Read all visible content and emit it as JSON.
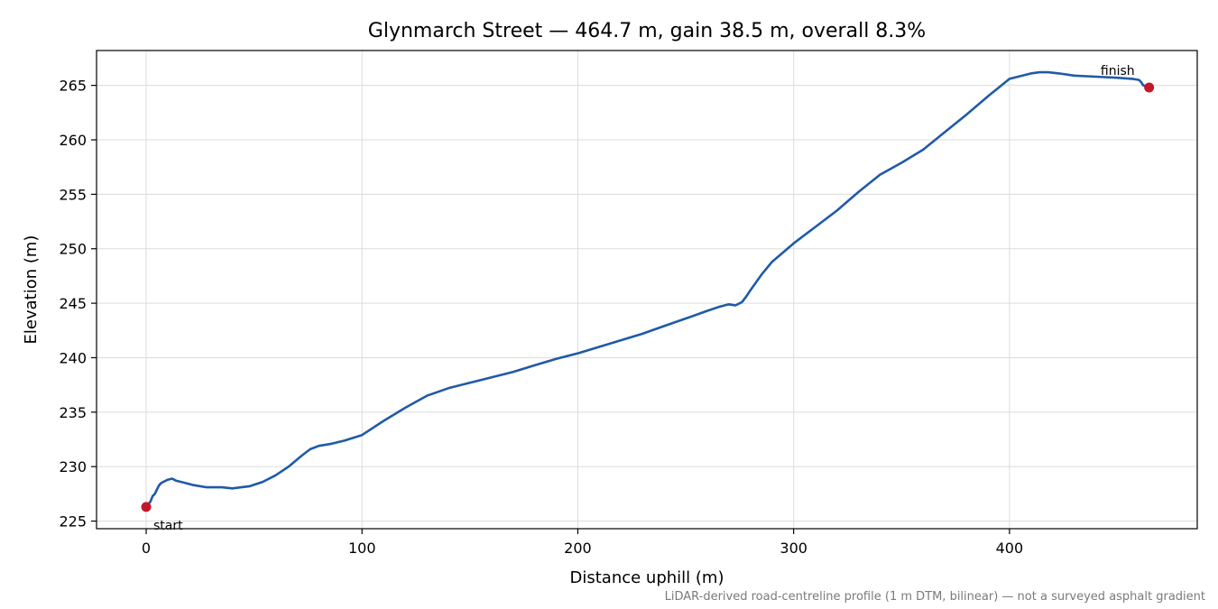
{
  "chart_data": {
    "type": "line",
    "title": "Glynmarch Street — 464.7 m, gain 38.5 m, overall 8.3%",
    "xlabel": "Distance uphill (m)",
    "ylabel": "Elevation (m)",
    "footnote": "LiDAR-derived road-centreline profile (1 m DTM, bilinear) — not a surveyed asphalt gradient",
    "xlim": [
      -23,
      487
    ],
    "ylim": [
      224.3,
      268.2
    ],
    "xticks": [
      0,
      100,
      200,
      300,
      400
    ],
    "yticks": [
      225,
      230,
      235,
      240,
      245,
      250,
      255,
      260,
      265
    ],
    "grid": true,
    "colors": {
      "line": "#1f5aa8",
      "endpoints": "#c0192a"
    },
    "series": [
      {
        "x": [
          0,
          2,
          3,
          4,
          5,
          6,
          7,
          8,
          10,
          12,
          14,
          18,
          22,
          28,
          35,
          40,
          44,
          48,
          54,
          60,
          66,
          72,
          76,
          80,
          86,
          92,
          100,
          110,
          120,
          130,
          140,
          150,
          160,
          170,
          180,
          190,
          200,
          210,
          220,
          230,
          240,
          250,
          260,
          266,
          270,
          273,
          276,
          278,
          280,
          285,
          290,
          300,
          310,
          320,
          330,
          340,
          350,
          360,
          370,
          380,
          390,
          400,
          410,
          414,
          418,
          423,
          430,
          440,
          450,
          457,
          460,
          461,
          462,
          464.7
        ],
        "y": [
          226.3,
          226.8,
          227.3,
          227.5,
          227.9,
          228.3,
          228.5,
          228.6,
          228.8,
          228.9,
          228.7,
          228.5,
          228.3,
          228.1,
          228.1,
          228.0,
          228.1,
          228.2,
          228.6,
          229.2,
          230.0,
          231.0,
          231.6,
          231.9,
          232.1,
          232.4,
          232.9,
          234.2,
          235.4,
          236.5,
          237.2,
          237.7,
          238.2,
          238.7,
          239.3,
          239.9,
          240.4,
          241.0,
          241.6,
          242.2,
          242.9,
          243.6,
          244.3,
          244.7,
          244.9,
          244.8,
          245.1,
          245.6,
          246.2,
          247.6,
          248.8,
          250.5,
          252.0,
          253.5,
          255.2,
          256.8,
          257.9,
          259.1,
          260.7,
          262.3,
          264.0,
          265.6,
          266.1,
          266.2,
          266.2,
          266.1,
          265.9,
          265.8,
          265.7,
          265.6,
          265.5,
          265.3,
          265.0,
          264.8
        ]
      }
    ],
    "markers": [
      {
        "label": "start",
        "x": 0,
        "y": 226.3
      },
      {
        "label": "finish",
        "x": 464.7,
        "y": 264.8
      }
    ]
  }
}
